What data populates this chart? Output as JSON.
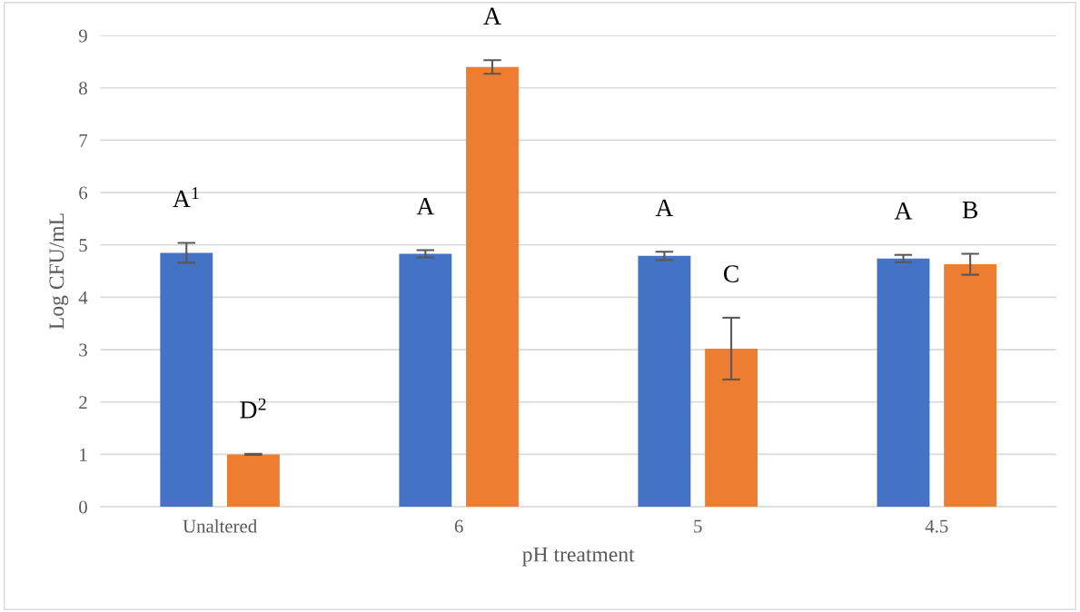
{
  "chart_data": {
    "type": "bar",
    "xlabel": "pH treatment",
    "ylabel": "Log CFU/mL",
    "categories": [
      "Unaltered",
      "6",
      "5",
      "4.5"
    ],
    "series": [
      {
        "color": "#4472c4",
        "values": [
          4.85,
          4.83,
          4.79,
          4.74
        ],
        "errors": [
          0.19,
          0.07,
          0.08,
          0.07
        ]
      },
      {
        "color": "#ed7d31",
        "values": [
          1.0,
          8.4,
          3.02,
          4.63
        ],
        "errors": [
          0.01,
          0.13,
          0.59,
          0.2
        ]
      }
    ],
    "annotations": [
      "A$^{1}$",
      "D$^{2}$",
      "A",
      "A",
      "A",
      "C",
      "A",
      "B"
    ],
    "ylim": [
      0,
      9
    ],
    "yticks": [
      0,
      1,
      2,
      3,
      4,
      5,
      6,
      7,
      8,
      9
    ],
    "grid": "y",
    "legend": false
  }
}
